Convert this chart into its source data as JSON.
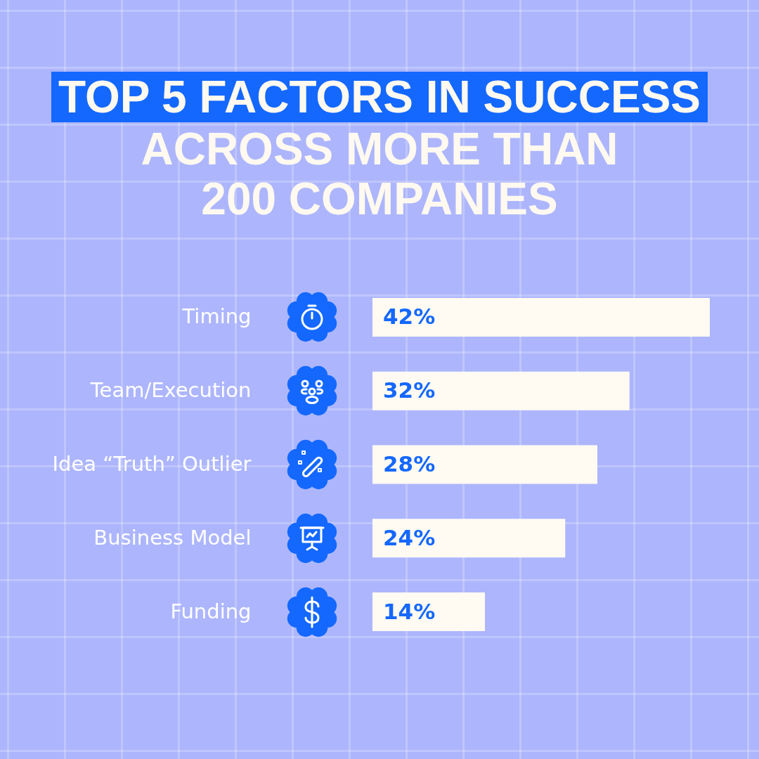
{
  "chart_data": {
    "type": "bar",
    "orientation": "horizontal",
    "title": "TOP 5 FACTORS IN SUCCESS",
    "subtitle": "ACROSS MORE THAN 200 COMPANIES",
    "categories": [
      "Timing",
      "Team/Execution",
      "Idea “Truth” Outlier",
      "Business Model",
      "Funding"
    ],
    "values": [
      42,
      32,
      28,
      24,
      14
    ],
    "value_labels": [
      "42%",
      "32%",
      "28%",
      "24%",
      "14%"
    ],
    "color": "#fffaf2"
  }
}
